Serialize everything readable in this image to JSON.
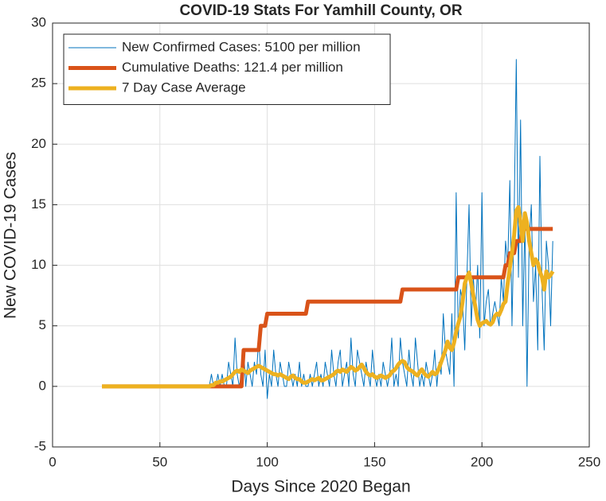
{
  "chart_data": {
    "type": "line",
    "title": "COVID-19 Stats For Yamhill County, OR",
    "x_label": "Days Since 2020 Began",
    "y_label": "New COVID-19 Cases",
    "xlim": [
      0,
      250
    ],
    "xticks": [
      0,
      50,
      100,
      150,
      200,
      250
    ],
    "ylim": [
      -5,
      30
    ],
    "yticks": [
      -5,
      0,
      5,
      10,
      15,
      20,
      25,
      30
    ],
    "grid": true,
    "legend": "upper left",
    "x": [
      23,
      24,
      25,
      26,
      27,
      28,
      29,
      30,
      31,
      32,
      33,
      34,
      35,
      36,
      37,
      38,
      39,
      40,
      41,
      42,
      43,
      44,
      45,
      46,
      47,
      48,
      49,
      50,
      51,
      52,
      53,
      54,
      55,
      56,
      57,
      58,
      59,
      60,
      61,
      62,
      63,
      64,
      65,
      66,
      67,
      68,
      69,
      70,
      71,
      72,
      73,
      74,
      75,
      76,
      77,
      78,
      79,
      80,
      81,
      82,
      83,
      84,
      85,
      86,
      87,
      88,
      89,
      90,
      91,
      92,
      93,
      94,
      95,
      96,
      97,
      98,
      99,
      100,
      101,
      102,
      103,
      104,
      105,
      106,
      107,
      108,
      109,
      110,
      111,
      112,
      113,
      114,
      115,
      116,
      117,
      118,
      119,
      120,
      121,
      122,
      123,
      124,
      125,
      126,
      127,
      128,
      129,
      130,
      131,
      132,
      133,
      134,
      135,
      136,
      137,
      138,
      139,
      140,
      141,
      142,
      143,
      144,
      145,
      146,
      147,
      148,
      149,
      150,
      151,
      152,
      153,
      154,
      155,
      156,
      157,
      158,
      159,
      160,
      161,
      162,
      163,
      164,
      165,
      166,
      167,
      168,
      169,
      170,
      171,
      172,
      173,
      174,
      175,
      176,
      177,
      178,
      179,
      180,
      181,
      182,
      183,
      184,
      185,
      186,
      187,
      188,
      189,
      190,
      191,
      192,
      193,
      194,
      195,
      196,
      197,
      198,
      199,
      200,
      201,
      202,
      203,
      204,
      205,
      206,
      207,
      208,
      209,
      210,
      211,
      212,
      213,
      214,
      215,
      216,
      217,
      218,
      219,
      220,
      221,
      222,
      223,
      224,
      225,
      226,
      227,
      228,
      229,
      230,
      231,
      232,
      233
    ],
    "series": [
      {
        "name": "New Confirmed Cases: 5100 per million",
        "color": "#0072bd",
        "width": 1,
        "values": [
          0,
          0,
          0,
          0,
          0,
          0,
          0,
          0,
          0,
          0,
          0,
          0,
          0,
          0,
          0,
          0,
          0,
          0,
          0,
          0,
          0,
          0,
          0,
          0,
          0,
          0,
          0,
          0,
          0,
          0,
          0,
          0,
          0,
          0,
          0,
          0,
          0,
          0,
          0,
          0,
          0,
          0,
          0,
          0,
          0,
          0,
          0,
          0,
          0,
          0,
          0,
          1,
          0,
          0,
          1,
          0,
          1,
          0,
          0,
          2,
          1,
          0,
          4,
          1,
          0,
          1,
          3,
          0,
          2,
          1,
          0,
          2,
          1,
          4,
          1,
          0,
          3,
          -1,
          1,
          0,
          3,
          1,
          0,
          2,
          1,
          0,
          0,
          2,
          1,
          0,
          1,
          0,
          2,
          0,
          1,
          0,
          0,
          1,
          0,
          1,
          2,
          0,
          1,
          0,
          2,
          1,
          0,
          3,
          1,
          0,
          2,
          3,
          0,
          1,
          2,
          0,
          4,
          1,
          0,
          3,
          2,
          1,
          0,
          2,
          1,
          0,
          3,
          1,
          0,
          1,
          0,
          2,
          1,
          0,
          1,
          4,
          0,
          1,
          0,
          4,
          2,
          1,
          0,
          3,
          1,
          0,
          4,
          2,
          0,
          1,
          0,
          2,
          1,
          0,
          1,
          3,
          0,
          2,
          1,
          6,
          3,
          2,
          1,
          6,
          0,
          16,
          4,
          8,
          7,
          3,
          9,
          15,
          5,
          9,
          6,
          10,
          4,
          16,
          5,
          7,
          8,
          5,
          6,
          7,
          6,
          5,
          9,
          7,
          12,
          10,
          17,
          5,
          14,
          27,
          9,
          22,
          5,
          14,
          0,
          12,
          15,
          7,
          10,
          3,
          19,
          8,
          3,
          12,
          10,
          5,
          12
        ]
      },
      {
        "name": "Cumulative Deaths: 121.4 per million",
        "color": "#d95319",
        "width": 5,
        "values": [
          0,
          0,
          0,
          0,
          0,
          0,
          0,
          0,
          0,
          0,
          0,
          0,
          0,
          0,
          0,
          0,
          0,
          0,
          0,
          0,
          0,
          0,
          0,
          0,
          0,
          0,
          0,
          0,
          0,
          0,
          0,
          0,
          0,
          0,
          0,
          0,
          0,
          0,
          0,
          0,
          0,
          0,
          0,
          0,
          0,
          0,
          0,
          0,
          0,
          0,
          0,
          0,
          0,
          0,
          0,
          0,
          0,
          0,
          0,
          0,
          0,
          0,
          0,
          0,
          0,
          0,
          3,
          3,
          3,
          3,
          3,
          3,
          3,
          3,
          5,
          5,
          5,
          6,
          6,
          6,
          6,
          6,
          6,
          6,
          6,
          6,
          6,
          6,
          6,
          6,
          6,
          6,
          6,
          6,
          6,
          6,
          7,
          7,
          7,
          7,
          7,
          7,
          7,
          7,
          7,
          7,
          7,
          7,
          7,
          7,
          7,
          7,
          7,
          7,
          7,
          7,
          7,
          7,
          7,
          7,
          7,
          7,
          7,
          7,
          7,
          7,
          7,
          7,
          7,
          7,
          7,
          7,
          7,
          7,
          7,
          7,
          7,
          7,
          7,
          7,
          8,
          8,
          8,
          8,
          8,
          8,
          8,
          8,
          8,
          8,
          8,
          8,
          8,
          8,
          8,
          8,
          8,
          8,
          8,
          8,
          8,
          8,
          8,
          8,
          8,
          8,
          9,
          9,
          9,
          9,
          9,
          9,
          9,
          9,
          9,
          9,
          9,
          9,
          9,
          9,
          9,
          9,
          9,
          9,
          9,
          9,
          9,
          9,
          10,
          10,
          11,
          11,
          11,
          12,
          12,
          12,
          13,
          13,
          13,
          13,
          13,
          13,
          13,
          13,
          13,
          13,
          13,
          13,
          13,
          13,
          13
        ]
      },
      {
        "name": "7 Day Case Average",
        "color": "#edb120",
        "width": 5,
        "values": [
          0,
          0,
          0,
          0,
          0,
          0,
          0,
          0,
          0,
          0,
          0,
          0,
          0,
          0,
          0,
          0,
          0,
          0,
          0,
          0,
          0,
          0,
          0,
          0,
          0,
          0,
          0,
          0,
          0,
          0,
          0,
          0,
          0,
          0,
          0,
          0,
          0,
          0,
          0,
          0,
          0,
          0,
          0,
          0,
          0,
          0,
          0,
          0,
          0,
          0,
          0,
          0.1,
          0.1,
          0.3,
          0.3,
          0.4,
          0.4,
          0.5,
          0.6,
          0.7,
          0.8,
          1.0,
          1.2,
          1.3,
          1.2,
          1.4,
          1.3,
          1.2,
          1.1,
          1.3,
          1.4,
          1.5,
          1.6,
          1.7,
          1.6,
          1.5,
          1.4,
          1.3,
          1.2,
          1.1,
          1.0,
          1.0,
          0.9,
          1.0,
          0.9,
          0.8,
          0.7,
          0.6,
          0.8,
          0.9,
          0.7,
          0.6,
          0.6,
          0.4,
          0.3,
          0.3,
          0.4,
          0.5,
          0.6,
          0.5,
          0.6,
          0.7,
          0.5,
          0.5,
          0.6,
          0.7,
          0.8,
          0.9,
          1.0,
          1.2,
          1.3,
          1.2,
          1.4,
          1.3,
          1.2,
          1.4,
          1.6,
          1.5,
          1.3,
          1.4,
          1.6,
          1.8,
          1.5,
          1.2,
          1.0,
          0.9,
          1.0,
          0.8,
          0.7,
          0.8,
          0.9,
          0.8,
          0.7,
          0.8,
          0.9,
          1.2,
          1.3,
          1.5,
          1.8,
          2.0,
          2.1,
          2.0,
          1.6,
          1.4,
          1.3,
          1.2,
          1.0,
          0.9,
          1.2,
          1.4,
          1.1,
          0.9,
          0.8,
          1.0,
          1.2,
          1.0,
          1.1,
          1.5,
          2.0,
          2.5,
          3.0,
          3.7,
          3.2,
          3.0,
          3.6,
          4.5,
          5.2,
          5.8,
          7.0,
          8.5,
          9.0,
          9.4,
          8.5,
          7.5,
          6.5,
          5.5,
          5.0,
          5.2,
          5.3,
          5.4,
          5.2,
          5.1,
          5.3,
          5.8,
          6.0,
          5.9,
          6.3,
          6.8,
          7.0,
          8.5,
          9.8,
          11.0,
          12.5,
          14.5,
          14.8,
          13.5,
          12.0,
          14.3,
          13.5,
          12.0,
          11.0,
          10.0,
          10.5,
          10.2,
          9.5,
          9.0,
          8.0,
          9.5,
          9.0,
          9.2,
          9.5
        ]
      }
    ]
  }
}
